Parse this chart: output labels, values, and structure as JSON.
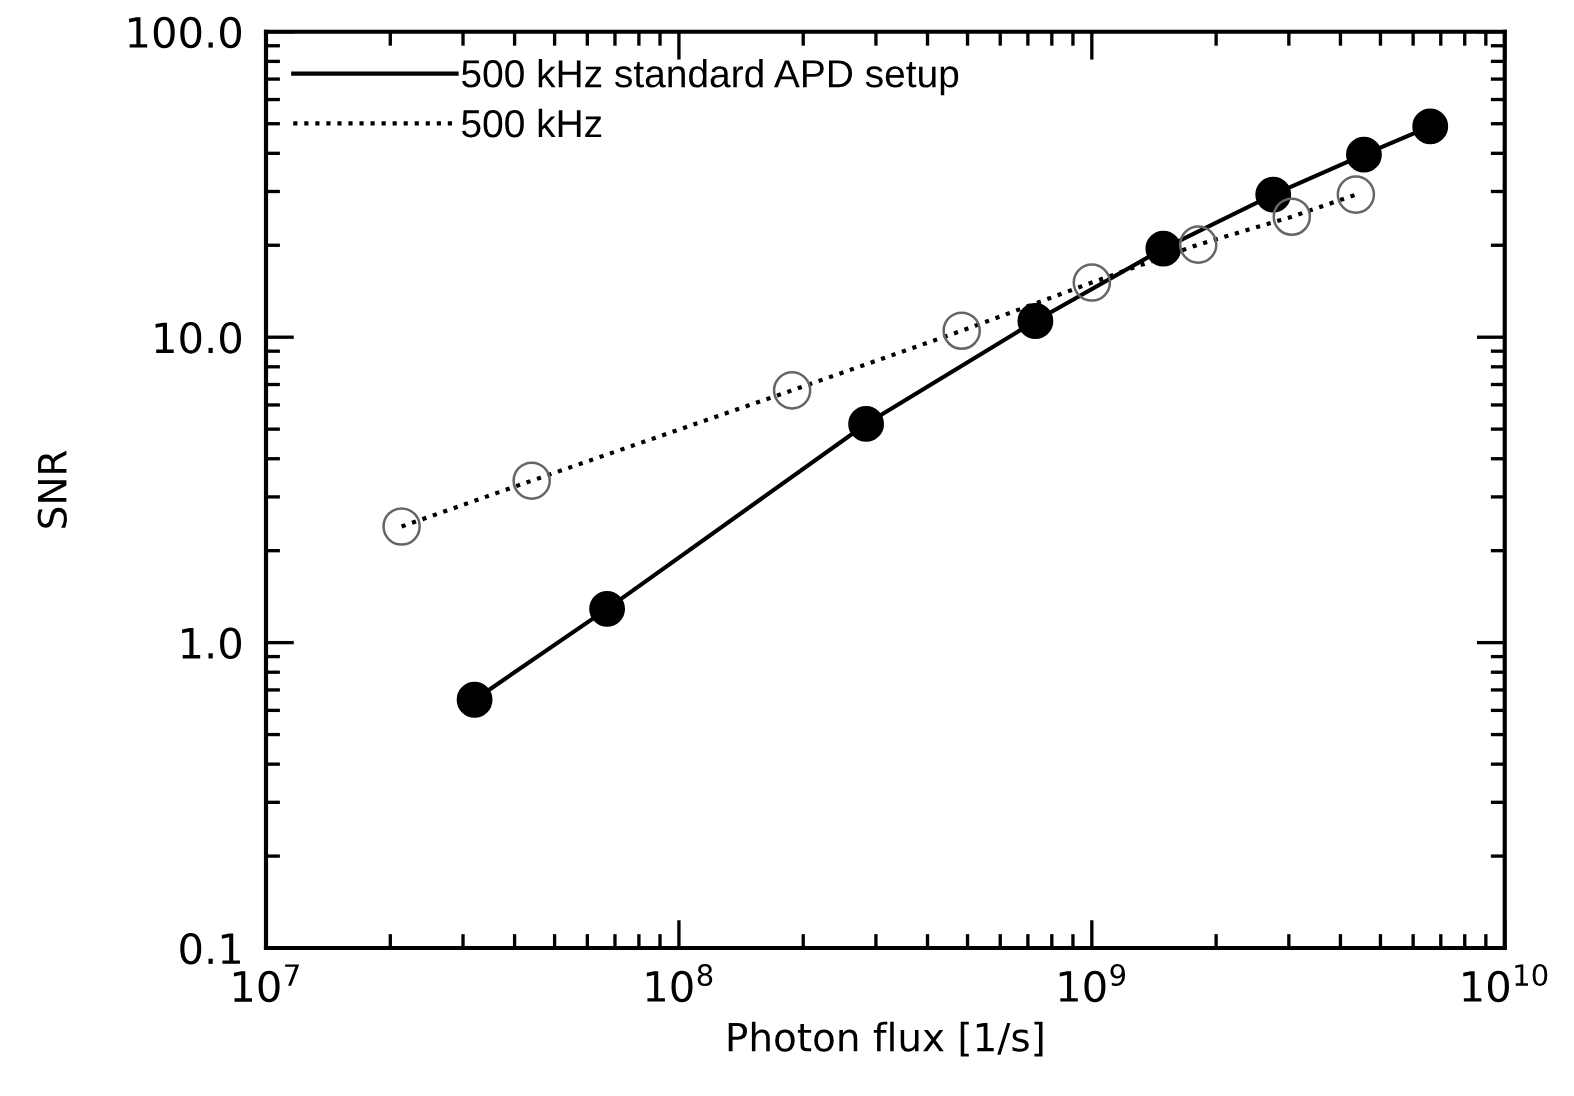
{
  "chart_data": {
    "type": "line",
    "xlabel": "Photon flux [1/s]",
    "ylabel": "SNR",
    "log": "xy",
    "xlim": [
      10000000.0,
      10000000000.0
    ],
    "ylim": [
      0.1,
      100
    ],
    "xticks": [
      {
        "value": 10000000.0,
        "label": "10$^{7}$"
      },
      {
        "value": 100000000.0,
        "label": "10$^{8}$"
      },
      {
        "value": 1000000000.0,
        "label": "10$^{9}$"
      },
      {
        "value": 10000000000.0,
        "label": "10$^{10}$"
      }
    ],
    "yticks": [
      0.1,
      {
        "value": 1,
        "label": "1.0"
      },
      {
        "value": 10,
        "label": "10.0"
      },
      {
        "value": 100,
        "label": "100.0"
      }
    ],
    "grid": false,
    "legend": "top left",
    "marker": "circle",
    "series": [
      {
        "name": "500 kHz standard APD setup",
        "color": "#000000",
        "line_style": "solid",
        "x": [
          32000000.0,
          67000000.0,
          284000000.0,
          730000000.0,
          1490000000.0,
          2750000000.0,
          4560000000.0,
          6600000000.0
        ],
        "values": [
          0.65,
          1.29,
          5.2,
          11.3,
          19.5,
          29.3,
          39.6,
          49
        ]
      },
      {
        "name": "500 kHz",
        "color": "#666666",
        "line_style": "dotted",
        "x": [
          21300000.0,
          44000000.0,
          188000000.0,
          484000000.0,
          1000000000.0,
          1810000000.0,
          3050000000.0,
          4360000000.0
        ],
        "values": [
          2.4,
          3.39,
          6.7,
          10.5,
          15.1,
          20.1,
          24.8,
          29.3
        ]
      }
    ]
  }
}
